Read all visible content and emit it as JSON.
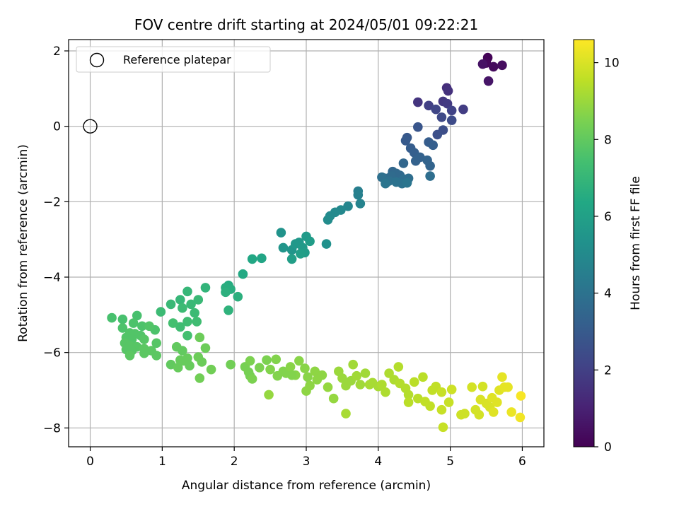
{
  "chart_data": {
    "type": "scatter",
    "title": "FOV centre drift starting at 2024/05/01 09:22:21",
    "xlabel": "Angular distance from reference (arcmin)",
    "ylabel": "Rotation from reference (arcmin)",
    "xlim": [
      -0.3,
      6.3
    ],
    "ylim": [
      -8.5,
      2.3
    ],
    "xticks": [
      0,
      1,
      2,
      3,
      4,
      5,
      6
    ],
    "yticks": [
      -8,
      -6,
      -4,
      -2,
      0,
      2
    ],
    "grid": true,
    "legend": {
      "position": "top-left",
      "entries": [
        "Reference platepar"
      ]
    },
    "reference_point": {
      "x": 0,
      "y": 0,
      "label": "Reference platepar"
    },
    "colorbar": {
      "label": "Hours from first FF file",
      "colormap": "viridis",
      "range": [
        0,
        10.6
      ],
      "ticks": [
        0,
        2,
        4,
        6,
        8,
        10
      ]
    },
    "points": [
      {
        "x": 5.52,
        "y": 1.82,
        "c": 0.1
      },
      {
        "x": 5.5,
        "y": 1.68,
        "c": 0.2
      },
      {
        "x": 5.6,
        "y": 1.58,
        "c": 0.3
      },
      {
        "x": 5.72,
        "y": 1.62,
        "c": 0.4
      },
      {
        "x": 5.45,
        "y": 1.65,
        "c": 0.5
      },
      {
        "x": 5.53,
        "y": 1.2,
        "c": 0.6
      },
      {
        "x": 4.95,
        "y": 1.02,
        "c": 1.4
      },
      {
        "x": 4.97,
        "y": 0.94,
        "c": 1.5
      },
      {
        "x": 4.55,
        "y": 0.64,
        "c": 1.6
      },
      {
        "x": 4.9,
        "y": 0.66,
        "c": 1.7
      },
      {
        "x": 4.96,
        "y": 0.6,
        "c": 1.8
      },
      {
        "x": 5.18,
        "y": 0.45,
        "c": 1.9
      },
      {
        "x": 4.7,
        "y": 0.55,
        "c": 2.0
      },
      {
        "x": 5.02,
        "y": 0.42,
        "c": 2.1
      },
      {
        "x": 4.8,
        "y": 0.45,
        "c": 2.2
      },
      {
        "x": 4.88,
        "y": 0.24,
        "c": 2.3
      },
      {
        "x": 5.02,
        "y": 0.16,
        "c": 2.4
      },
      {
        "x": 4.9,
        "y": -0.1,
        "c": 2.5
      },
      {
        "x": 4.82,
        "y": -0.22,
        "c": 2.6
      },
      {
        "x": 4.55,
        "y": -0.02,
        "c": 2.8
      },
      {
        "x": 4.4,
        "y": -0.3,
        "c": 2.9
      },
      {
        "x": 4.38,
        "y": -0.38,
        "c": 3.0
      },
      {
        "x": 4.45,
        "y": -0.58,
        "c": 3.1
      },
      {
        "x": 4.7,
        "y": -0.42,
        "c": 3.1
      },
      {
        "x": 4.76,
        "y": -0.5,
        "c": 3.2
      },
      {
        "x": 4.5,
        "y": -0.7,
        "c": 3.2
      },
      {
        "x": 4.58,
        "y": -0.82,
        "c": 3.3
      },
      {
        "x": 4.52,
        "y": -0.92,
        "c": 3.3
      },
      {
        "x": 4.68,
        "y": -0.9,
        "c": 3.4
      },
      {
        "x": 4.72,
        "y": -1.05,
        "c": 3.4
      },
      {
        "x": 4.35,
        "y": -0.98,
        "c": 3.5
      },
      {
        "x": 4.2,
        "y": -1.2,
        "c": 3.5
      },
      {
        "x": 4.25,
        "y": -1.25,
        "c": 3.6
      },
      {
        "x": 4.3,
        "y": -1.3,
        "c": 3.6
      },
      {
        "x": 4.18,
        "y": -1.32,
        "c": 3.7
      },
      {
        "x": 4.1,
        "y": -1.38,
        "c": 3.7
      },
      {
        "x": 4.35,
        "y": -1.4,
        "c": 3.8
      },
      {
        "x": 4.42,
        "y": -1.38,
        "c": 3.8
      },
      {
        "x": 4.72,
        "y": -1.32,
        "c": 3.8
      },
      {
        "x": 4.05,
        "y": -1.35,
        "c": 3.9
      },
      {
        "x": 4.15,
        "y": -1.45,
        "c": 3.9
      },
      {
        "x": 4.25,
        "y": -1.48,
        "c": 4.0
      },
      {
        "x": 4.33,
        "y": -1.52,
        "c": 4.0
      },
      {
        "x": 4.4,
        "y": -1.5,
        "c": 4.1
      },
      {
        "x": 4.1,
        "y": -1.52,
        "c": 4.1
      },
      {
        "x": 3.72,
        "y": -1.72,
        "c": 4.5
      },
      {
        "x": 3.72,
        "y": -1.82,
        "c": 4.6
      },
      {
        "x": 3.75,
        "y": -2.05,
        "c": 4.7
      },
      {
        "x": 3.58,
        "y": -2.12,
        "c": 4.8
      },
      {
        "x": 3.48,
        "y": -2.22,
        "c": 4.9
      },
      {
        "x": 3.4,
        "y": -2.28,
        "c": 5.0
      },
      {
        "x": 3.33,
        "y": -2.38,
        "c": 5.0
      },
      {
        "x": 3.3,
        "y": -2.48,
        "c": 5.1
      },
      {
        "x": 3.28,
        "y": -3.12,
        "c": 5.3
      },
      {
        "x": 2.65,
        "y": -2.82,
        "c": 5.4
      },
      {
        "x": 2.68,
        "y": -3.22,
        "c": 5.5
      },
      {
        "x": 2.8,
        "y": -3.28,
        "c": 5.5
      },
      {
        "x": 2.85,
        "y": -3.12,
        "c": 5.6
      },
      {
        "x": 2.9,
        "y": -3.08,
        "c": 5.6
      },
      {
        "x": 2.95,
        "y": -3.22,
        "c": 5.7
      },
      {
        "x": 3.0,
        "y": -2.92,
        "c": 5.7
      },
      {
        "x": 3.05,
        "y": -3.05,
        "c": 5.8
      },
      {
        "x": 2.98,
        "y": -3.35,
        "c": 5.8
      },
      {
        "x": 2.92,
        "y": -3.38,
        "c": 5.9
      },
      {
        "x": 2.8,
        "y": -3.52,
        "c": 5.9
      },
      {
        "x": 2.38,
        "y": -3.5,
        "c": 6.2
      },
      {
        "x": 2.25,
        "y": -3.52,
        "c": 6.3
      },
      {
        "x": 2.12,
        "y": -3.92,
        "c": 6.4
      },
      {
        "x": 1.92,
        "y": -4.22,
        "c": 6.5
      },
      {
        "x": 1.88,
        "y": -4.28,
        "c": 6.6
      },
      {
        "x": 1.95,
        "y": -4.32,
        "c": 6.6
      },
      {
        "x": 1.88,
        "y": -4.4,
        "c": 6.7
      },
      {
        "x": 2.05,
        "y": -4.52,
        "c": 6.7
      },
      {
        "x": 1.92,
        "y": -4.88,
        "c": 6.8
      },
      {
        "x": 1.6,
        "y": -4.28,
        "c": 6.9
      },
      {
        "x": 1.35,
        "y": -4.38,
        "c": 7.0
      },
      {
        "x": 1.25,
        "y": -4.6,
        "c": 7.0
      },
      {
        "x": 1.12,
        "y": -4.72,
        "c": 7.1
      },
      {
        "x": 1.4,
        "y": -4.72,
        "c": 7.1
      },
      {
        "x": 1.5,
        "y": -4.6,
        "c": 7.1
      },
      {
        "x": 1.28,
        "y": -4.82,
        "c": 7.2
      },
      {
        "x": 1.45,
        "y": -4.95,
        "c": 7.2
      },
      {
        "x": 0.98,
        "y": -4.92,
        "c": 7.2
      },
      {
        "x": 1.35,
        "y": -5.18,
        "c": 7.3
      },
      {
        "x": 1.48,
        "y": -5.18,
        "c": 7.3
      },
      {
        "x": 1.25,
        "y": -5.32,
        "c": 7.3
      },
      {
        "x": 1.15,
        "y": -5.22,
        "c": 7.4
      },
      {
        "x": 1.35,
        "y": -5.55,
        "c": 7.4
      },
      {
        "x": 0.3,
        "y": -5.08,
        "c": 7.5
      },
      {
        "x": 0.45,
        "y": -5.12,
        "c": 7.5
      },
      {
        "x": 0.65,
        "y": -5.02,
        "c": 7.5
      },
      {
        "x": 0.6,
        "y": -5.22,
        "c": 7.6
      },
      {
        "x": 0.72,
        "y": -5.3,
        "c": 7.6
      },
      {
        "x": 0.9,
        "y": -5.4,
        "c": 7.6
      },
      {
        "x": 0.45,
        "y": -5.35,
        "c": 7.6
      },
      {
        "x": 0.55,
        "y": -5.48,
        "c": 7.7
      },
      {
        "x": 0.62,
        "y": -5.5,
        "c": 7.7
      },
      {
        "x": 0.7,
        "y": -5.55,
        "c": 7.7
      },
      {
        "x": 0.5,
        "y": -5.6,
        "c": 7.7
      },
      {
        "x": 0.58,
        "y": -5.65,
        "c": 7.7
      },
      {
        "x": 0.75,
        "y": -5.65,
        "c": 7.8
      },
      {
        "x": 0.48,
        "y": -5.75,
        "c": 7.8
      },
      {
        "x": 0.55,
        "y": -5.82,
        "c": 7.8
      },
      {
        "x": 0.65,
        "y": -5.85,
        "c": 7.8
      },
      {
        "x": 0.5,
        "y": -5.92,
        "c": 7.8
      },
      {
        "x": 0.58,
        "y": -5.95,
        "c": 7.8
      },
      {
        "x": 0.75,
        "y": -5.9,
        "c": 7.9
      },
      {
        "x": 0.85,
        "y": -5.95,
        "c": 7.9
      },
      {
        "x": 0.55,
        "y": -6.08,
        "c": 7.9
      },
      {
        "x": 0.75,
        "y": -6.02,
        "c": 7.9
      },
      {
        "x": 0.92,
        "y": -6.08,
        "c": 7.9
      },
      {
        "x": 0.82,
        "y": -5.3,
        "c": 7.7
      },
      {
        "x": 0.92,
        "y": -5.75,
        "c": 7.8
      },
      {
        "x": 1.2,
        "y": -5.85,
        "c": 8.0
      },
      {
        "x": 1.28,
        "y": -5.95,
        "c": 8.0
      },
      {
        "x": 1.12,
        "y": -6.32,
        "c": 8.0
      },
      {
        "x": 1.25,
        "y": -6.2,
        "c": 8.1
      },
      {
        "x": 1.35,
        "y": -6.15,
        "c": 8.1
      },
      {
        "x": 1.22,
        "y": -6.4,
        "c": 8.1
      },
      {
        "x": 1.38,
        "y": -6.35,
        "c": 8.1
      },
      {
        "x": 1.3,
        "y": -6.22,
        "c": 8.1
      },
      {
        "x": 1.52,
        "y": -5.6,
        "c": 8.2
      },
      {
        "x": 1.6,
        "y": -5.88,
        "c": 8.2
      },
      {
        "x": 1.5,
        "y": -6.12,
        "c": 8.2
      },
      {
        "x": 1.55,
        "y": -6.25,
        "c": 8.2
      },
      {
        "x": 1.68,
        "y": -6.45,
        "c": 8.3
      },
      {
        "x": 1.52,
        "y": -6.68,
        "c": 8.3
      },
      {
        "x": 1.95,
        "y": -6.32,
        "c": 8.3
      },
      {
        "x": 2.15,
        "y": -6.38,
        "c": 8.4
      },
      {
        "x": 2.2,
        "y": -6.52,
        "c": 8.4
      },
      {
        "x": 2.22,
        "y": -6.62,
        "c": 8.4
      },
      {
        "x": 2.25,
        "y": -6.7,
        "c": 8.5
      },
      {
        "x": 2.22,
        "y": -6.22,
        "c": 8.5
      },
      {
        "x": 2.35,
        "y": -6.4,
        "c": 8.5
      },
      {
        "x": 2.45,
        "y": -6.2,
        "c": 8.5
      },
      {
        "x": 2.5,
        "y": -6.45,
        "c": 8.6
      },
      {
        "x": 2.58,
        "y": -6.18,
        "c": 8.6
      },
      {
        "x": 2.6,
        "y": -6.62,
        "c": 8.6
      },
      {
        "x": 2.68,
        "y": -6.5,
        "c": 8.6
      },
      {
        "x": 2.72,
        "y": -6.55,
        "c": 8.6
      },
      {
        "x": 2.78,
        "y": -6.38,
        "c": 8.7
      },
      {
        "x": 2.85,
        "y": -6.6,
        "c": 8.7
      },
      {
        "x": 2.9,
        "y": -6.22,
        "c": 8.7
      },
      {
        "x": 2.98,
        "y": -6.42,
        "c": 8.7
      },
      {
        "x": 3.02,
        "y": -6.65,
        "c": 8.7
      },
      {
        "x": 3.05,
        "y": -6.88,
        "c": 8.8
      },
      {
        "x": 3.0,
        "y": -7.02,
        "c": 8.8
      },
      {
        "x": 3.12,
        "y": -6.5,
        "c": 8.8
      },
      {
        "x": 3.15,
        "y": -6.72,
        "c": 8.8
      },
      {
        "x": 3.22,
        "y": -6.6,
        "c": 8.8
      },
      {
        "x": 3.3,
        "y": -6.92,
        "c": 8.9
      },
      {
        "x": 3.38,
        "y": -7.22,
        "c": 8.9
      },
      {
        "x": 2.48,
        "y": -7.12,
        "c": 8.9
      },
      {
        "x": 2.8,
        "y": -6.6,
        "c": 8.6
      },
      {
        "x": 3.45,
        "y": -6.5,
        "c": 9.0
      },
      {
        "x": 3.5,
        "y": -6.68,
        "c": 9.0
      },
      {
        "x": 3.55,
        "y": -6.88,
        "c": 9.0
      },
      {
        "x": 3.62,
        "y": -6.75,
        "c": 9.0
      },
      {
        "x": 3.65,
        "y": -6.32,
        "c": 9.1
      },
      {
        "x": 3.7,
        "y": -6.62,
        "c": 9.1
      },
      {
        "x": 3.75,
        "y": -6.85,
        "c": 9.1
      },
      {
        "x": 3.82,
        "y": -6.55,
        "c": 9.1
      },
      {
        "x": 3.88,
        "y": -6.85,
        "c": 9.2
      },
      {
        "x": 3.92,
        "y": -6.8,
        "c": 9.2
      },
      {
        "x": 3.55,
        "y": -7.62,
        "c": 9.2
      },
      {
        "x": 4.0,
        "y": -6.9,
        "c": 9.2
      },
      {
        "x": 4.05,
        "y": -6.85,
        "c": 9.3
      },
      {
        "x": 4.1,
        "y": -7.05,
        "c": 9.3
      },
      {
        "x": 4.15,
        "y": -6.55,
        "c": 9.3
      },
      {
        "x": 4.22,
        "y": -6.72,
        "c": 9.3
      },
      {
        "x": 4.28,
        "y": -6.38,
        "c": 9.4
      },
      {
        "x": 4.3,
        "y": -6.82,
        "c": 9.4
      },
      {
        "x": 4.38,
        "y": -6.95,
        "c": 9.4
      },
      {
        "x": 4.42,
        "y": -7.12,
        "c": 9.4
      },
      {
        "x": 4.42,
        "y": -7.32,
        "c": 9.5
      },
      {
        "x": 4.5,
        "y": -6.78,
        "c": 9.5
      },
      {
        "x": 4.55,
        "y": -7.22,
        "c": 9.5
      },
      {
        "x": 4.62,
        "y": -6.65,
        "c": 9.5
      },
      {
        "x": 4.65,
        "y": -7.3,
        "c": 9.6
      },
      {
        "x": 4.72,
        "y": -7.42,
        "c": 9.6
      },
      {
        "x": 4.75,
        "y": -7.0,
        "c": 9.6
      },
      {
        "x": 4.8,
        "y": -6.9,
        "c": 9.6
      },
      {
        "x": 4.88,
        "y": -7.05,
        "c": 9.7
      },
      {
        "x": 4.88,
        "y": -7.52,
        "c": 9.7
      },
      {
        "x": 4.9,
        "y": -7.98,
        "c": 9.7
      },
      {
        "x": 4.98,
        "y": -7.32,
        "c": 9.7
      },
      {
        "x": 5.02,
        "y": -6.98,
        "c": 9.8
      },
      {
        "x": 5.15,
        "y": -7.65,
        "c": 9.8
      },
      {
        "x": 5.2,
        "y": -7.62,
        "c": 9.8
      },
      {
        "x": 5.3,
        "y": -6.92,
        "c": 9.9
      },
      {
        "x": 5.35,
        "y": -7.52,
        "c": 9.9
      },
      {
        "x": 5.4,
        "y": -7.65,
        "c": 9.9
      },
      {
        "x": 5.45,
        "y": -6.9,
        "c": 9.9
      },
      {
        "x": 5.42,
        "y": -7.25,
        "c": 10.0
      },
      {
        "x": 5.5,
        "y": -7.35,
        "c": 10.0
      },
      {
        "x": 5.55,
        "y": -7.45,
        "c": 10.0
      },
      {
        "x": 5.58,
        "y": -7.2,
        "c": 10.1
      },
      {
        "x": 5.6,
        "y": -7.58,
        "c": 10.1
      },
      {
        "x": 5.65,
        "y": -7.32,
        "c": 10.1
      },
      {
        "x": 5.68,
        "y": -7.0,
        "c": 10.1
      },
      {
        "x": 5.72,
        "y": -6.65,
        "c": 10.2
      },
      {
        "x": 5.75,
        "y": -6.92,
        "c": 10.2
      },
      {
        "x": 5.8,
        "y": -6.92,
        "c": 10.2
      },
      {
        "x": 5.85,
        "y": -7.58,
        "c": 10.3
      },
      {
        "x": 5.97,
        "y": -7.72,
        "c": 10.4
      },
      {
        "x": 5.98,
        "y": -7.15,
        "c": 10.5
      }
    ]
  }
}
